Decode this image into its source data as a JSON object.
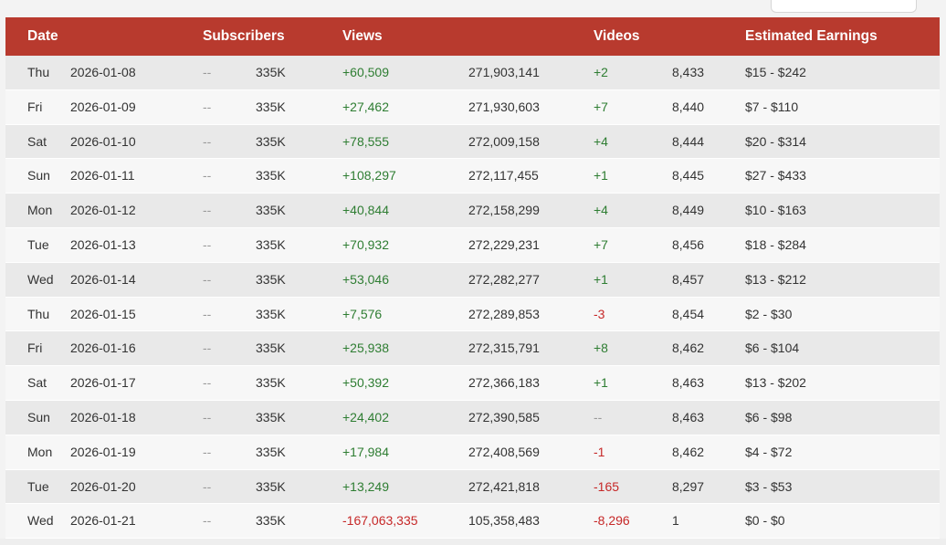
{
  "table": {
    "headers": {
      "date": "Date",
      "subscribers": "Subscribers",
      "views": "Views",
      "videos": "Videos",
      "earnings": "Estimated Earnings"
    },
    "rows": [
      {
        "day": "Thu",
        "date": "2026-01-08",
        "sub_delta": "--",
        "subscribers": "335K",
        "views_delta": "+60,509",
        "views_delta_type": "pos",
        "views_total": "271,903,141",
        "videos_delta": "+2",
        "videos_delta_type": "pos",
        "videos_total": "8,433",
        "earnings": "$15 - $242"
      },
      {
        "day": "Fri",
        "date": "2026-01-09",
        "sub_delta": "--",
        "subscribers": "335K",
        "views_delta": "+27,462",
        "views_delta_type": "pos",
        "views_total": "271,930,603",
        "videos_delta": "+7",
        "videos_delta_type": "pos",
        "videos_total": "8,440",
        "earnings": "$7 - $110"
      },
      {
        "day": "Sat",
        "date": "2026-01-10",
        "sub_delta": "--",
        "subscribers": "335K",
        "views_delta": "+78,555",
        "views_delta_type": "pos",
        "views_total": "272,009,158",
        "videos_delta": "+4",
        "videos_delta_type": "pos",
        "videos_total": "8,444",
        "earnings": "$20 - $314"
      },
      {
        "day": "Sun",
        "date": "2026-01-11",
        "sub_delta": "--",
        "subscribers": "335K",
        "views_delta": "+108,297",
        "views_delta_type": "pos",
        "views_total": "272,117,455",
        "videos_delta": "+1",
        "videos_delta_type": "pos",
        "videos_total": "8,445",
        "earnings": "$27 - $433"
      },
      {
        "day": "Mon",
        "date": "2026-01-12",
        "sub_delta": "--",
        "subscribers": "335K",
        "views_delta": "+40,844",
        "views_delta_type": "pos",
        "views_total": "272,158,299",
        "videos_delta": "+4",
        "videos_delta_type": "pos",
        "videos_total": "8,449",
        "earnings": "$10 - $163"
      },
      {
        "day": "Tue",
        "date": "2026-01-13",
        "sub_delta": "--",
        "subscribers": "335K",
        "views_delta": "+70,932",
        "views_delta_type": "pos",
        "views_total": "272,229,231",
        "videos_delta": "+7",
        "videos_delta_type": "pos",
        "videos_total": "8,456",
        "earnings": "$18 - $284"
      },
      {
        "day": "Wed",
        "date": "2026-01-14",
        "sub_delta": "--",
        "subscribers": "335K",
        "views_delta": "+53,046",
        "views_delta_type": "pos",
        "views_total": "272,282,277",
        "videos_delta": "+1",
        "videos_delta_type": "pos",
        "videos_total": "8,457",
        "earnings": "$13 - $212"
      },
      {
        "day": "Thu",
        "date": "2026-01-15",
        "sub_delta": "--",
        "subscribers": "335K",
        "views_delta": "+7,576",
        "views_delta_type": "pos",
        "views_total": "272,289,853",
        "videos_delta": "-3",
        "videos_delta_type": "neg",
        "videos_total": "8,454",
        "earnings": "$2 - $30"
      },
      {
        "day": "Fri",
        "date": "2026-01-16",
        "sub_delta": "--",
        "subscribers": "335K",
        "views_delta": "+25,938",
        "views_delta_type": "pos",
        "views_total": "272,315,791",
        "videos_delta": "+8",
        "videos_delta_type": "pos",
        "videos_total": "8,462",
        "earnings": "$6 - $104"
      },
      {
        "day": "Sat",
        "date": "2026-01-17",
        "sub_delta": "--",
        "subscribers": "335K",
        "views_delta": "+50,392",
        "views_delta_type": "pos",
        "views_total": "272,366,183",
        "videos_delta": "+1",
        "videos_delta_type": "pos",
        "videos_total": "8,463",
        "earnings": "$13 - $202"
      },
      {
        "day": "Sun",
        "date": "2026-01-18",
        "sub_delta": "--",
        "subscribers": "335K",
        "views_delta": "+24,402",
        "views_delta_type": "pos",
        "views_total": "272,390,585",
        "videos_delta": "--",
        "videos_delta_type": "neu",
        "videos_total": "8,463",
        "earnings": "$6 - $98"
      },
      {
        "day": "Mon",
        "date": "2026-01-19",
        "sub_delta": "--",
        "subscribers": "335K",
        "views_delta": "+17,984",
        "views_delta_type": "pos",
        "views_total": "272,408,569",
        "videos_delta": "-1",
        "videos_delta_type": "neg",
        "videos_total": "8,462",
        "earnings": "$4 - $72"
      },
      {
        "day": "Tue",
        "date": "2026-01-20",
        "sub_delta": "--",
        "subscribers": "335K",
        "views_delta": "+13,249",
        "views_delta_type": "pos",
        "views_total": "272,421,818",
        "videos_delta": "-165",
        "videos_delta_type": "neg",
        "videos_total": "8,297",
        "earnings": "$3 - $53"
      },
      {
        "day": "Wed",
        "date": "2026-01-21",
        "sub_delta": "--",
        "subscribers": "335K",
        "views_delta": "-167,063,335",
        "views_delta_type": "neg",
        "views_total": "105,358,483",
        "videos_delta": "-8,296",
        "videos_delta_type": "neg",
        "videos_total": "1",
        "earnings": "$0 - $0"
      }
    ]
  },
  "colors": {
    "header_bg": "#b83a2e",
    "positive": "#2e7d32",
    "negative": "#c62828",
    "neutral": "#9a9a9a"
  }
}
